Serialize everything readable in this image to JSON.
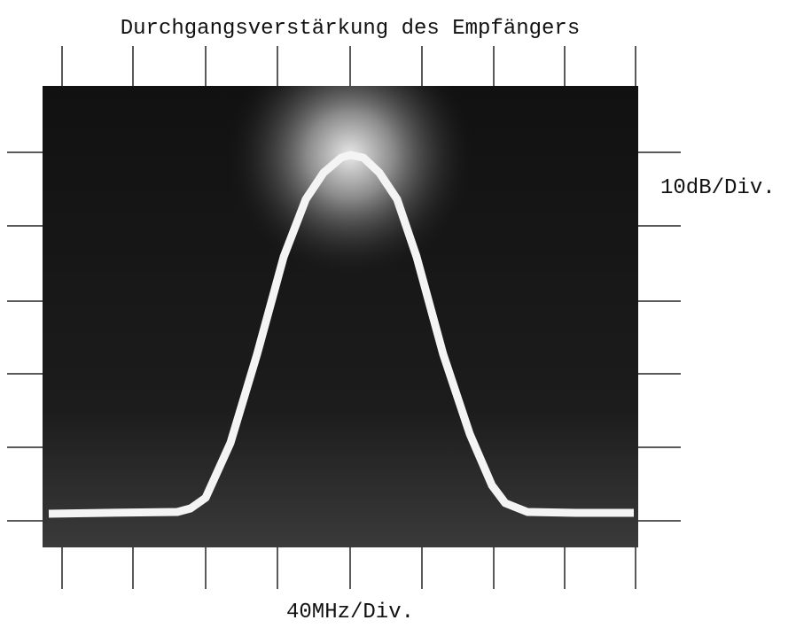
{
  "title": "Durchgangsverstärkung des Empfängers",
  "y_scale": "10dB/Div.",
  "x_scale": "40MHz/Div."
}
